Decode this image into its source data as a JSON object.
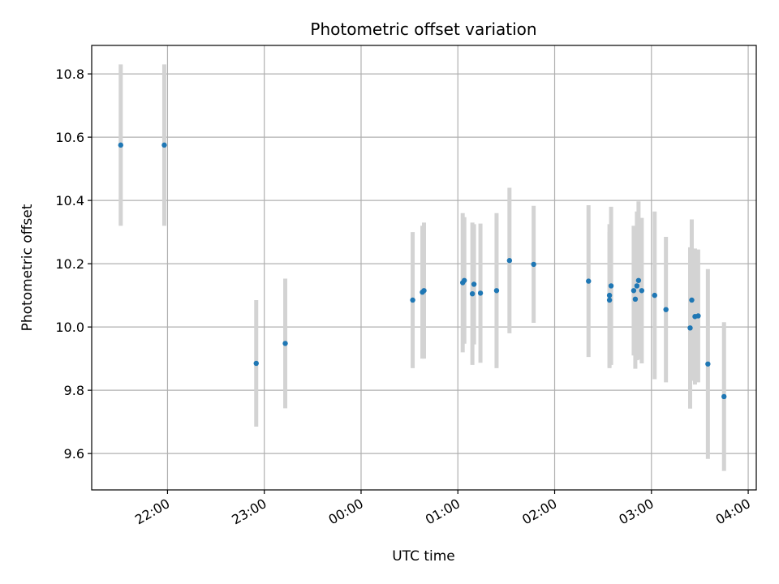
{
  "chart_data": {
    "type": "scatter",
    "title": "Photometric offset variation",
    "xlabel": "UTC time",
    "ylabel": "Photometric offset",
    "x_axis_type": "time",
    "xlim": [
      "21:13",
      "04:05"
    ],
    "ylim": [
      9.485,
      10.89
    ],
    "x_ticks": [
      "22:00",
      "23:00",
      "00:00",
      "01:00",
      "02:00",
      "03:00",
      "04:00"
    ],
    "y_ticks": [
      9.6,
      9.8,
      10.0,
      10.2,
      10.4,
      10.6,
      10.8
    ],
    "grid": true,
    "legend": "none",
    "colors": {
      "marker": "#1f77b4",
      "errorbar": "#d3d3d3",
      "grid": "#b0b0b0"
    },
    "points": [
      {
        "x": "21:31",
        "y": 10.575,
        "yerr_low": 0.255,
        "yerr_high": 0.255
      },
      {
        "x": "21:58",
        "y": 10.575,
        "yerr_low": 0.255,
        "yerr_high": 0.255
      },
      {
        "x": "22:55",
        "y": 9.885,
        "yerr_low": 0.2,
        "yerr_high": 0.2
      },
      {
        "x": "23:13",
        "y": 9.948,
        "yerr_low": 0.205,
        "yerr_high": 0.205
      },
      {
        "x": "00:32",
        "y": 10.085,
        "yerr_low": 0.215,
        "yerr_high": 0.215
      },
      {
        "x": "00:38",
        "y": 10.11,
        "yerr_low": 0.21,
        "yerr_high": 0.21
      },
      {
        "x": "00:39",
        "y": 10.115,
        "yerr_low": 0.215,
        "yerr_high": 0.215
      },
      {
        "x": "01:03",
        "y": 10.14,
        "yerr_low": 0.22,
        "yerr_high": 0.22
      },
      {
        "x": "01:04",
        "y": 10.147,
        "yerr_low": 0.2,
        "yerr_high": 0.2
      },
      {
        "x": "01:09",
        "y": 10.105,
        "yerr_low": 0.225,
        "yerr_high": 0.225
      },
      {
        "x": "01:10",
        "y": 10.135,
        "yerr_low": 0.19,
        "yerr_high": 0.19
      },
      {
        "x": "01:14",
        "y": 10.107,
        "yerr_low": 0.22,
        "yerr_high": 0.22
      },
      {
        "x": "01:24",
        "y": 10.115,
        "yerr_low": 0.245,
        "yerr_high": 0.245
      },
      {
        "x": "01:32",
        "y": 10.21,
        "yerr_low": 0.23,
        "yerr_high": 0.23
      },
      {
        "x": "01:47",
        "y": 10.198,
        "yerr_low": 0.185,
        "yerr_high": 0.185
      },
      {
        "x": "02:21",
        "y": 10.145,
        "yerr_low": 0.24,
        "yerr_high": 0.24
      },
      {
        "x": "02:34",
        "y": 10.1,
        "yerr_low": 0.225,
        "yerr_high": 0.225
      },
      {
        "x": "02:34",
        "y": 10.085,
        "yerr_low": 0.215,
        "yerr_high": 0.215
      },
      {
        "x": "02:35",
        "y": 10.13,
        "yerr_low": 0.25,
        "yerr_high": 0.25
      },
      {
        "x": "02:49",
        "y": 10.115,
        "yerr_low": 0.205,
        "yerr_high": 0.205
      },
      {
        "x": "02:50",
        "y": 10.088,
        "yerr_low": 0.22,
        "yerr_high": 0.22
      },
      {
        "x": "02:51",
        "y": 10.13,
        "yerr_low": 0.235,
        "yerr_high": 0.235
      },
      {
        "x": "02:52",
        "y": 10.147,
        "yerr_low": 0.25,
        "yerr_high": 0.25
      },
      {
        "x": "02:54",
        "y": 10.115,
        "yerr_low": 0.23,
        "yerr_high": 0.23
      },
      {
        "x": "03:02",
        "y": 10.1,
        "yerr_low": 0.265,
        "yerr_high": 0.265
      },
      {
        "x": "03:09",
        "y": 10.055,
        "yerr_low": 0.23,
        "yerr_high": 0.23
      },
      {
        "x": "03:24",
        "y": 9.997,
        "yerr_low": 0.255,
        "yerr_high": 0.255
      },
      {
        "x": "03:25",
        "y": 10.085,
        "yerr_low": 0.255,
        "yerr_high": 0.255
      },
      {
        "x": "03:27",
        "y": 10.033,
        "yerr_low": 0.215,
        "yerr_high": 0.215
      },
      {
        "x": "03:29",
        "y": 10.035,
        "yerr_low": 0.21,
        "yerr_high": 0.21
      },
      {
        "x": "03:35",
        "y": 9.883,
        "yerr_low": 0.3,
        "yerr_high": 0.3
      },
      {
        "x": "03:45",
        "y": 9.78,
        "yerr_low": 0.235,
        "yerr_high": 0.235
      }
    ]
  }
}
